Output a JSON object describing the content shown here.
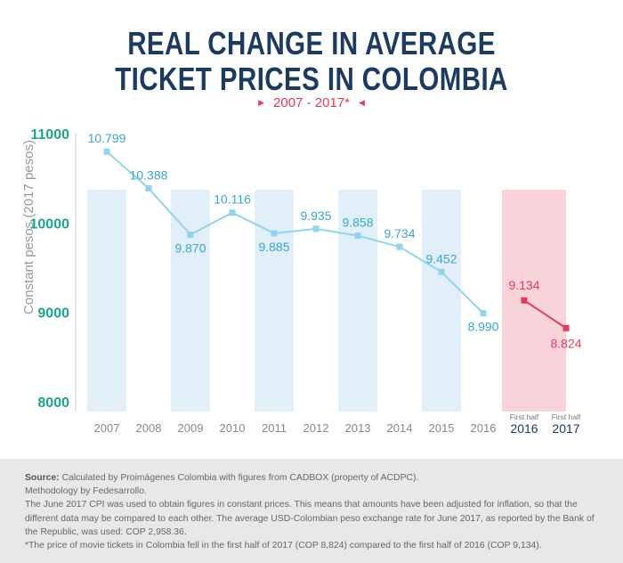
{
  "title_line1": "REAL CHANGE IN AVERAGE",
  "title_line2": "TICKET PRICES IN COLOMBIA",
  "subtitle": "2007 - 2017*",
  "colors": {
    "title": "#1b3b63",
    "accent": "#e63a5b",
    "line": "#8fd3f2",
    "band": "#e1f0f8",
    "band_highlight": "#f9d3da",
    "y_ticks": "#1aa58c",
    "axis_text": "#888888",
    "footer_bg": "#e8e8e8"
  },
  "chart_data": {
    "type": "line",
    "ylabel": "Constant pesos (2017 pesos)",
    "ylim": [
      8000,
      11000
    ],
    "yticks": [
      "8000",
      "9000",
      "10000",
      "11000"
    ],
    "categories": [
      "2007",
      "2008",
      "2009",
      "2010",
      "2011",
      "2012",
      "2013",
      "2014",
      "2015",
      "2016"
    ],
    "values": [
      10799,
      10388,
      9870,
      10116,
      9885,
      9935,
      9858,
      9734,
      9452,
      8990
    ],
    "value_labels": [
      "10.799",
      "10.388",
      "9.870",
      "10.116",
      "9.885",
      "9.935",
      "9.858",
      "9.734",
      "9.452",
      "8.990"
    ],
    "half_year": {
      "categories": [
        {
          "top": "First half",
          "year": "2016"
        },
        {
          "top": "First half",
          "year": "2017"
        }
      ],
      "values": [
        9134,
        8824
      ],
      "value_labels": [
        "9.134",
        "8.824"
      ]
    }
  },
  "footer": {
    "source_label": "Source:",
    "source_text": " Calculated by Proimágenes Colombia with figures from CADBOX (property of ACDPC).",
    "methodology": "Methodology by Fedesarrollo.",
    "cpi_note": "The June 2017 CPI was used to obtain figures in constant prices. This means that amounts have been adjusted for inflation, so that the different data may be compared to each other. The average USD-Colombian peso exchange rate for June 2017, as reported by the Bank of the Republic, was used: COP 2,958.36.",
    "footnote": "*The price of movie tickets in Colombia fell in the first half of 2017 (COP 8,824) compared to the first half of 2016 (COP 9,134)."
  }
}
